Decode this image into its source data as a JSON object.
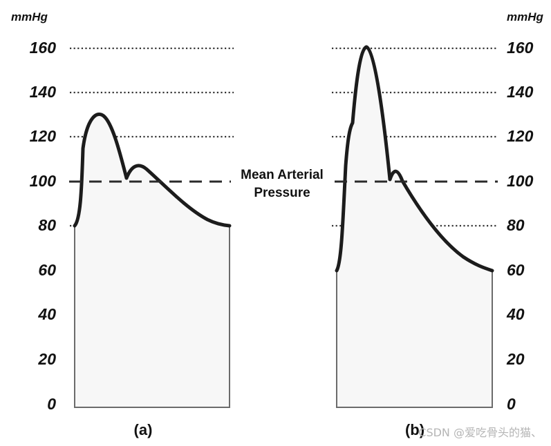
{
  "units": {
    "left": "mmHg",
    "right": "mmHg"
  },
  "ticks": [
    "0",
    "20",
    "40",
    "60",
    "80",
    "100",
    "120",
    "140",
    "160"
  ],
  "map_label": {
    "line1": "Mean Arterial",
    "line2": "Pressure"
  },
  "map_value": 100,
  "panels": [
    {
      "label": "(a)",
      "systolic": 130,
      "diastolic": 80,
      "notch": 101,
      "secondary_peak": 106
    },
    {
      "label": "(b)",
      "systolic": 160,
      "diastolic": 60,
      "notch": 100,
      "secondary_peak": 105
    }
  ],
  "watermark": "CSDN @爱吃骨头的猫、",
  "colors": {
    "text": "#111111",
    "wave_fill": "#f7f7f7",
    "wave_stroke": "#1c1c1c",
    "watermark": "#b5b5b5"
  }
}
